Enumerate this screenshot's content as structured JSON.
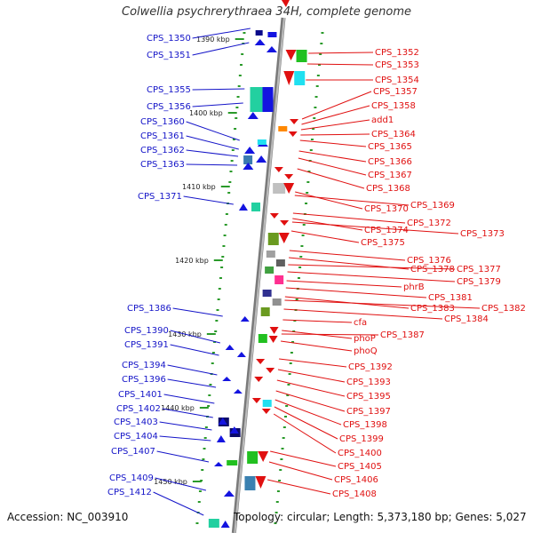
{
  "title": "Colwellia psychrerythraea 34H, complete genome",
  "accession": "Accession: NC_003910",
  "topology": "Topology: circular; Length: 5,373,180 bp; Genes: 5,027",
  "colors": {
    "left_labels": "#1414c8",
    "right_labels": "#e01010",
    "track": "#909090",
    "tick": "#2a9a2a"
  },
  "ruler_labels": [
    "1390 kbp",
    "1400 kbp",
    "1410 kbp",
    "1420 kbp",
    "1430 kbp",
    "1440 kbp",
    "1450 kbp"
  ],
  "left_genes": [
    "CPS_1350",
    "CPS_1351",
    "CPS_1355",
    "CPS_1356",
    "CPS_1360",
    "CPS_1361",
    "CPS_1362",
    "CPS_1363",
    "CPS_1371",
    "CPS_1386",
    "CPS_1390",
    "CPS_1391",
    "CPS_1394",
    "CPS_1396",
    "CPS_1401",
    "CPS_1402",
    "CPS_1403",
    "CPS_1404",
    "CPS_1407",
    "CPS_1409",
    "CPS_1412"
  ],
  "right_genes": [
    "CPS_1352",
    "CPS_1353",
    "CPS_1354",
    "CPS_1357",
    "CPS_1358",
    "add1",
    "CPS_1364",
    "CPS_1365",
    "CPS_1366",
    "CPS_1367",
    "CPS_1368",
    "CPS_1370",
    "CPS_1369",
    "CPS_1372",
    "CPS_1374",
    "CPS_1373",
    "CPS_1375",
    "CPS_1376",
    "CPS_1378",
    "CPS_1377",
    "CPS_1379",
    "phrB",
    "CPS_1381",
    "CPS_1383",
    "CPS_1382",
    "CPS_1384",
    "cfa",
    "phoP",
    "CPS_1387",
    "phoQ",
    "CPS_1392",
    "CPS_1393",
    "CPS_1395",
    "CPS_1397",
    "CPS_1398",
    "CPS_1399",
    "CPS_1400",
    "CPS_1405",
    "CPS_1406",
    "CPS_1408"
  ]
}
